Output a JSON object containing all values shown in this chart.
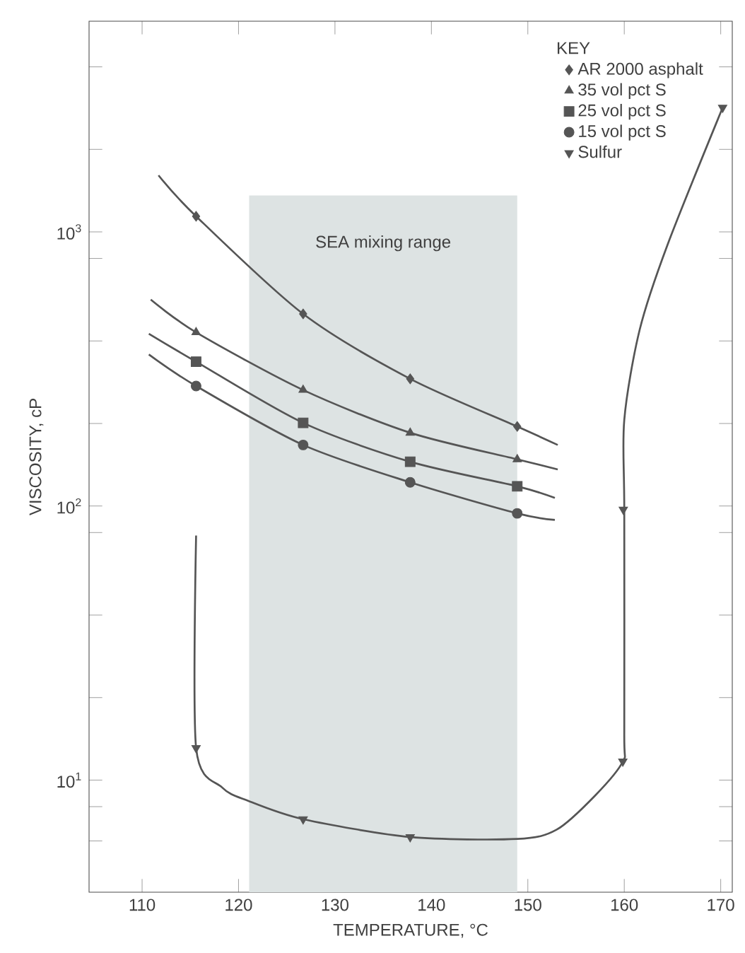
{
  "chart_data": {
    "type": "scatter",
    "xlabel": "TEMPERATURE, °C",
    "ylabel": "VISCOSITY, cP",
    "legend_title": "KEY",
    "legend": "top right",
    "log": "y",
    "xlim": [
      104.5,
      171.2
    ],
    "ylim": [
      3.9,
      5870
    ],
    "xticks": [
      110,
      120,
      130,
      140,
      150,
      160,
      170
    ],
    "yticks": [
      {
        "value": 6,
        "label": null
      },
      {
        "value": 8,
        "label": null
      },
      {
        "value": 10,
        "label": "10$^{1}$"
      },
      {
        "value": 20,
        "label": null
      },
      {
        "value": 40,
        "label": null
      },
      {
        "value": 80,
        "label": null
      },
      {
        "value": 100,
        "label": "10$^{2}$"
      },
      {
        "value": 200,
        "label": null
      },
      {
        "value": 400,
        "label": null
      },
      {
        "value": 800,
        "label": null
      },
      {
        "value": 1000,
        "label": "10$^{3}$"
      },
      {
        "value": 2000,
        "label": null
      },
      {
        "value": 4000,
        "label": null
      }
    ],
    "bands": [
      {
        "axis": "x",
        "from": 121.1,
        "to": 148.9,
        "label": "SEA mixing range",
        "color": "#dde3e3"
      }
    ],
    "series": [
      {
        "name": "AR 2000 asphalt",
        "marker": "diamond",
        "color": "#555555",
        "x": [
          115.6,
          126.7,
          137.8,
          148.9
        ],
        "values": [
          1140,
          502,
          291,
          195
        ]
      },
      {
        "name": "35 vol pct S",
        "marker": "triangle",
        "color": "#555555",
        "x": [
          115.6,
          126.7,
          137.8,
          148.9
        ],
        "values": [
          430,
          265,
          185,
          148
        ]
      },
      {
        "name": "25 vol pct S",
        "marker": "square",
        "color": "#555555",
        "x": [
          115.6,
          126.7,
          137.8,
          148.9
        ],
        "values": [
          336,
          201,
          145,
          118
        ]
      },
      {
        "name": "15 vol pct S",
        "marker": "circle",
        "color": "#555555",
        "x": [
          115.6,
          126.7,
          137.8,
          148.9
        ],
        "values": [
          274,
          167,
          122,
          94
        ]
      },
      {
        "name": "Sulfur",
        "marker": "triangle-down",
        "color": "#555555",
        "x": [
          115.6,
          126.7,
          137.8,
          159.85,
          159.9,
          170.2
        ],
        "values": [
          13.1,
          7.2,
          6.2,
          11.7,
          97,
          2840
        ]
      },
      {
        "type": "line",
        "marker": "none",
        "color": "#555555",
        "x": [
          111.7,
          115.6,
          126.7,
          137.8,
          148.9,
          153.1
        ],
        "values": [
          1608,
          1140,
          502,
          291,
          195,
          167
        ]
      },
      {
        "type": "line",
        "marker": "none",
        "color": "#555555",
        "x": [
          110.9,
          115.6,
          126.7,
          137.8,
          148.9,
          153.1
        ],
        "values": [
          566,
          430,
          265,
          185,
          148,
          136
        ]
      },
      {
        "type": "line",
        "marker": "none",
        "color": "#555555",
        "x": [
          110.7,
          115.6,
          126.7,
          137.8,
          148.9,
          152.8
        ],
        "values": [
          425,
          336,
          201,
          145,
          118,
          107
        ]
      },
      {
        "type": "line",
        "marker": "none",
        "color": "#555555",
        "x": [
          110.7,
          115.6,
          126.7,
          137.8,
          148.9,
          152.8
        ],
        "values": [
          357,
          274,
          167,
          122,
          94,
          89
        ]
      },
      {
        "type": "line",
        "marker": "none",
        "color": "#555555",
        "x": [
          115.6,
          115.6,
          118.3,
          121,
          126.7,
          137.8,
          148.9,
          153,
          157,
          159.85,
          160,
          160,
          160,
          161.6,
          164.5,
          170.2
        ],
        "values": [
          78,
          13.1,
          9.4,
          8.4,
          7.2,
          6.2,
          6.1,
          6.6,
          8.8,
          11.7,
          15,
          97,
          206,
          440,
          900,
          2840
        ]
      }
    ]
  }
}
